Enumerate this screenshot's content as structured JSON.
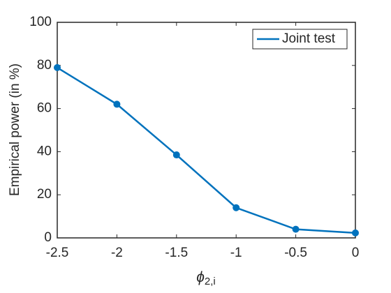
{
  "chart_data": {
    "type": "line",
    "ylabel": "Empirical power (in %)",
    "xlabel": {
      "base": "ϕ",
      "subscript": "2,i"
    },
    "x": [
      -2.5,
      -2,
      -1.5,
      -1,
      -0.5,
      0
    ],
    "series": [
      {
        "name": "Joint test",
        "color": "#0072bd",
        "values": [
          79,
          62,
          38.5,
          14,
          4,
          2.3
        ]
      }
    ],
    "xlim": [
      -2.5,
      0
    ],
    "xticks": [
      -2.5,
      -2,
      -1.5,
      -1,
      -0.5,
      0
    ],
    "ylim": [
      0,
      100
    ],
    "yticks": [
      0,
      20,
      40,
      60,
      80,
      100
    ],
    "legend": "northeast",
    "markers": true
  }
}
